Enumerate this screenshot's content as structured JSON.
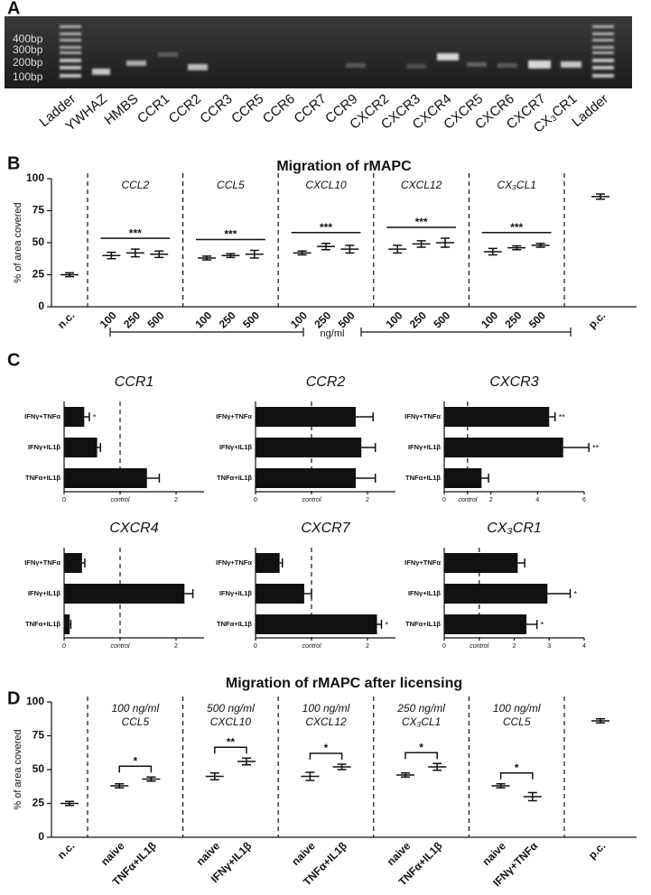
{
  "panel_labels": [
    "A",
    "B",
    "C",
    "D"
  ],
  "gel": {
    "ladder_labels": [
      "400bp",
      "300bp",
      "200bp",
      "100bp"
    ],
    "lanes": [
      "Ladder",
      "YWHAZ",
      "HMBS",
      "CCR1",
      "CCR2",
      "CCR3",
      "CCR5",
      "CCR6",
      "CCR7",
      "CCR9",
      "CXCR2",
      "CXCR3",
      "CXCR4",
      "CXCR5",
      "CXCR6",
      "CXCR7",
      "CX₃CR1",
      "Ladder"
    ]
  },
  "chart_data": [
    {
      "type": "dot",
      "title": "Migration of rMAPC",
      "ylabel": "% of area covered",
      "xlabel": "ng/ml",
      "ylim": [
        0,
        100
      ],
      "yticks": [
        0,
        25,
        50,
        75,
        100
      ],
      "annotation_style": "line",
      "controls": [
        {
          "label": "n.c.",
          "value": 25,
          "error": 1.5
        },
        {
          "label": "p.c.",
          "value": 86,
          "error": 2
        }
      ],
      "groups": [
        {
          "label": [
            "CCL2"
          ],
          "categories": [
            "100",
            "250",
            "500"
          ],
          "values": [
            40,
            42,
            41
          ],
          "errors": [
            2.5,
            3,
            2.5
          ],
          "annotation": "***"
        },
        {
          "label": [
            "CCL5"
          ],
          "categories": [
            "100",
            "250",
            "500"
          ],
          "values": [
            38,
            40,
            41
          ],
          "errors": [
            1.5,
            1.5,
            3
          ],
          "annotation": "***"
        },
        {
          "label": [
            "CXCL10"
          ],
          "categories": [
            "100",
            "250",
            "500"
          ],
          "values": [
            42,
            47,
            45
          ],
          "errors": [
            1.5,
            2.5,
            3
          ],
          "annotation": "***"
        },
        {
          "label": [
            "CXCL12"
          ],
          "categories": [
            "100",
            "250",
            "500"
          ],
          "values": [
            45,
            49,
            50
          ],
          "errors": [
            3,
            2.5,
            3.5
          ],
          "annotation": "***"
        },
        {
          "label": [
            "CX₃CL1"
          ],
          "categories": [
            "100",
            "250",
            "500"
          ],
          "values": [
            43,
            46,
            48
          ],
          "errors": [
            2.5,
            1.5,
            1.5
          ],
          "annotation": "***"
        }
      ]
    },
    {
      "type": "hbar",
      "title": "CCR1",
      "color": "#111111",
      "categories": [
        "IFNγ+TNFα",
        "IFNγ+IL1β",
        "TNFα+IL1β"
      ],
      "values": [
        0.36,
        0.59,
        1.48
      ],
      "errors": [
        0.09,
        0.06,
        0.22
      ],
      "annotations": [
        "*",
        null,
        null
      ],
      "xlim": [
        0,
        2.5
      ],
      "xticks": [
        0,
        2
      ],
      "reference": {
        "value": 1,
        "label": "control"
      }
    },
    {
      "type": "hbar",
      "title": "CCR2",
      "color": "#111111",
      "categories": [
        "IFNγ+TNFα",
        "IFNγ+IL1β",
        "TNFα+IL1β"
      ],
      "values": [
        1.79,
        1.89,
        1.79
      ],
      "errors": [
        0.31,
        0.25,
        0.35
      ],
      "xlim": [
        0,
        2.5
      ],
      "xticks": [
        0,
        2
      ],
      "reference": {
        "value": 1,
        "label": "control"
      }
    },
    {
      "type": "hbar",
      "title": "CXCR3",
      "color": "#111111",
      "categories": [
        "IFNγ+TNFα",
        "IFNγ+IL1β",
        "TNFα+IL1β"
      ],
      "values": [
        4.5,
        5.1,
        1.6
      ],
      "errors": [
        0.25,
        1.1,
        0.3
      ],
      "annotations": [
        "**",
        "**",
        null
      ],
      "xlim": [
        0,
        6
      ],
      "xticks": [
        0,
        2,
        4,
        6
      ],
      "reference": {
        "value": 1,
        "label": "control"
      }
    },
    {
      "type": "hbar",
      "title": "CXCR4",
      "color": "#111111",
      "categories": [
        "IFNγ+TNFα",
        "IFNγ+IL1β",
        "TNFα+IL1β"
      ],
      "values": [
        0.32,
        2.15,
        0.1
      ],
      "errors": [
        0.05,
        0.15,
        0.02
      ],
      "xlim": [
        0,
        2.5
      ],
      "xticks": [
        0,
        2
      ],
      "reference": {
        "value": 1,
        "label": "control"
      }
    },
    {
      "type": "hbar",
      "title": "CXCR7",
      "color": "#111111",
      "categories": [
        "IFNγ+TNFα",
        "IFNγ+IL1β",
        "TNFα+IL1β"
      ],
      "values": [
        0.43,
        0.87,
        2.17
      ],
      "errors": [
        0.05,
        0.13,
        0.08
      ],
      "annotations": [
        null,
        null,
        "*"
      ],
      "xlim": [
        0,
        2.5
      ],
      "xticks": [
        0,
        2
      ],
      "reference": {
        "value": 1,
        "label": "control"
      }
    },
    {
      "type": "hbar",
      "title": "CX₃CR1",
      "color": "#111111",
      "categories": [
        "IFNγ+TNFα",
        "IFNγ+IL1β",
        "TNFα+IL1β"
      ],
      "values": [
        2.1,
        2.95,
        2.35
      ],
      "errors": [
        0.2,
        0.65,
        0.3
      ],
      "annotations": [
        null,
        "*",
        "*"
      ],
      "xlim": [
        0,
        4
      ],
      "xticks": [
        0,
        2,
        3,
        4
      ],
      "reference": {
        "value": 1,
        "label": "control"
      }
    },
    {
      "type": "dot",
      "title": "Migration of rMAPC after licensing",
      "ylabel": "% of area covered",
      "ylim": [
        0,
        100
      ],
      "yticks": [
        0,
        25,
        50,
        75,
        100
      ],
      "annotation_style": "bracket",
      "controls": [
        {
          "label": "n.c.",
          "value": 25,
          "error": 1.5
        },
        {
          "label": "p.c.",
          "value": 86,
          "error": 1.5
        }
      ],
      "groups": [
        {
          "label": [
            "100 ng/ml",
            "CCL5"
          ],
          "categories": [
            "naive",
            "TNFα+IL1β"
          ],
          "values": [
            38,
            43
          ],
          "errors": [
            1.5,
            1.5
          ],
          "annotation": "*"
        },
        {
          "label": [
            "500 ng/ml",
            "CXCL10"
          ],
          "categories": [
            "naive",
            "IFNγ+IL1β"
          ],
          "values": [
            45,
            56
          ],
          "errors": [
            2.5,
            2.5
          ],
          "annotation": "**"
        },
        {
          "label": [
            "100 ng/ml",
            "CXCL12"
          ],
          "categories": [
            "naive",
            "TNFα+IL1β"
          ],
          "values": [
            45,
            52
          ],
          "errors": [
            3,
            2
          ],
          "annotation": "*"
        },
        {
          "label": [
            "250 ng/ml",
            "CX₃CL1"
          ],
          "categories": [
            "naive",
            "TNFα+IL1β"
          ],
          "values": [
            46,
            52
          ],
          "errors": [
            1.5,
            2.5
          ],
          "annotation": "*"
        },
        {
          "label": [
            "100 ng/ml",
            "CCL5"
          ],
          "categories": [
            "naive",
            "IFNγ+TNFα"
          ],
          "values": [
            38,
            30
          ],
          "errors": [
            1.5,
            3
          ],
          "annotation": "*"
        }
      ]
    }
  ]
}
